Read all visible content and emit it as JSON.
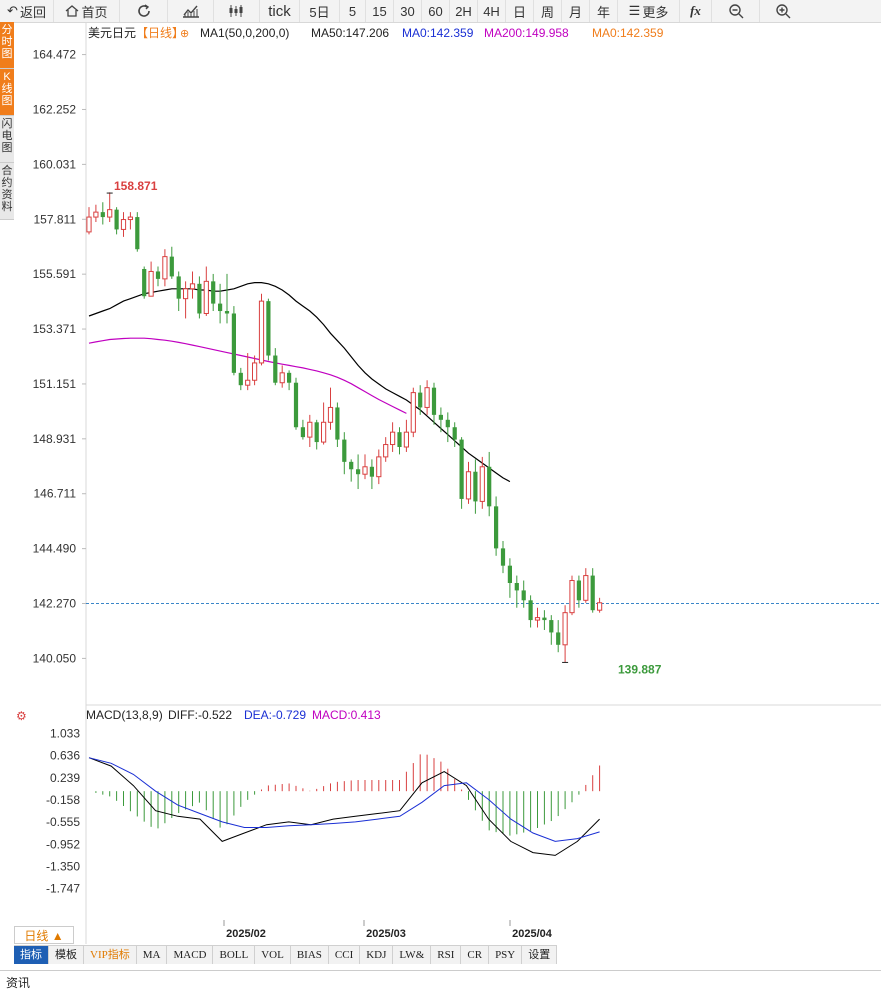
{
  "toolbar": {
    "back": "返回",
    "home": "首页",
    "tick": "tick",
    "periods": [
      "5日",
      "5",
      "15",
      "30",
      "60",
      "2H",
      "4H",
      "日",
      "周",
      "月",
      "年"
    ],
    "more": "更多"
  },
  "side_tabs": [
    "分时图",
    "K线图",
    "闪电图",
    "合约资料"
  ],
  "legend": {
    "symbol": "美元日元",
    "period_tag": "【日线】",
    "ma_set": "MA1(50,0,200,0)",
    "ma50": "MA50:147.206",
    "ma100": "MA0:142.359",
    "ma200": "MA200:149.958",
    "ma0": "MA0:142.359"
  },
  "macd_legend": {
    "name": "MACD(13,8,9)",
    "diff": "DIFF:-0.522",
    "dea": "DEA:-0.729",
    "macd": "MACD:0.413"
  },
  "price_ticks": [
    "164.472",
    "162.252",
    "160.031",
    "157.811",
    "155.591",
    "153.371",
    "151.151",
    "148.931",
    "146.711",
    "144.490",
    "142.270",
    "140.050"
  ],
  "macd_ticks": [
    "1.033",
    "0.636",
    "0.239",
    "-0.158",
    "-0.555",
    "-0.952",
    "-1.350",
    "-1.747"
  ],
  "date_labels": [
    "2025/02",
    "2025/03",
    "2025/04"
  ],
  "high_label": "158.871",
  "low_label": "139.887",
  "period_button": "日线 ▲",
  "indicator_tabs": [
    "指标",
    "模板",
    "VIP指标",
    "MA",
    "MACD",
    "BOLL",
    "VOL",
    "BIAS",
    "CCI",
    "KDJ",
    "LW&",
    "RSI",
    "CR",
    "PSY",
    "设置"
  ],
  "info_label": "资讯",
  "colors": {
    "up": "#d94040",
    "down": "#3c9a3c",
    "ma50": "#000000",
    "ma200": "#c000c0",
    "accent": "#f07d1b"
  },
  "chart_data": {
    "type": "candlestick",
    "ylim": [
      139.5,
      164.9
    ],
    "current_price": 142.27,
    "candles": [
      [
        157.3,
        157.9,
        157.2,
        158.3
      ],
      [
        157.9,
        158.1,
        157.7,
        158.4
      ],
      [
        158.1,
        157.9,
        157.6,
        158.5
      ],
      [
        157.9,
        158.2,
        157.7,
        158.9
      ],
      [
        158.2,
        157.4,
        157.2,
        158.3
      ],
      [
        157.4,
        157.8,
        157.1,
        158.1
      ],
      [
        157.8,
        157.9,
        157.4,
        158.1
      ],
      [
        157.9,
        156.6,
        156.5,
        158.1
      ],
      [
        155.8,
        154.7,
        154.6,
        155.9
      ],
      [
        154.7,
        155.7,
        154.7,
        156.1
      ],
      [
        155.7,
        155.4,
        155.1,
        155.9
      ],
      [
        155.4,
        156.3,
        155.1,
        156.6
      ],
      [
        156.3,
        155.5,
        155.4,
        156.7
      ],
      [
        155.5,
        154.6,
        154.1,
        155.7
      ],
      [
        154.6,
        155.0,
        153.8,
        155.3
      ],
      [
        155.0,
        155.2,
        154.6,
        155.7
      ],
      [
        155.2,
        154.0,
        153.8,
        155.5
      ],
      [
        154.0,
        155.3,
        153.9,
        155.9
      ],
      [
        155.3,
        154.4,
        154.1,
        155.6
      ],
      [
        154.4,
        154.1,
        153.6,
        155.2
      ],
      [
        154.1,
        154.0,
        153.6,
        155.6
      ],
      [
        154.0,
        151.6,
        151.5,
        154.3
      ],
      [
        151.6,
        151.1,
        150.9,
        151.8
      ],
      [
        151.1,
        151.3,
        150.9,
        152.4
      ],
      [
        151.3,
        152.0,
        151.1,
        152.3
      ],
      [
        152.0,
        154.5,
        151.9,
        154.8
      ],
      [
        154.5,
        152.3,
        152.1,
        154.6
      ],
      [
        152.3,
        151.2,
        151.1,
        152.6
      ],
      [
        151.2,
        151.6,
        151.0,
        151.9
      ],
      [
        151.6,
        151.2,
        150.9,
        151.7
      ],
      [
        151.2,
        149.4,
        149.3,
        151.4
      ],
      [
        149.4,
        149.0,
        148.9,
        149.7
      ],
      [
        149.0,
        149.6,
        148.6,
        149.9
      ],
      [
        149.6,
        148.8,
        148.5,
        149.7
      ],
      [
        148.8,
        149.6,
        148.7,
        150.4
      ],
      [
        149.6,
        150.2,
        149.3,
        151.0
      ],
      [
        150.2,
        148.9,
        148.6,
        150.4
      ],
      [
        148.9,
        148.0,
        147.5,
        149.2
      ],
      [
        148.0,
        147.7,
        147.2,
        148.1
      ],
      [
        147.7,
        147.5,
        146.9,
        148.3
      ],
      [
        147.5,
        147.8,
        147.3,
        148.3
      ],
      [
        147.8,
        147.4,
        146.9,
        148.1
      ],
      [
        147.4,
        148.2,
        147.1,
        148.5
      ],
      [
        148.2,
        148.7,
        148.0,
        149.0
      ],
      [
        148.7,
        149.2,
        148.4,
        149.6
      ],
      [
        149.2,
        148.6,
        148.3,
        149.4
      ],
      [
        148.6,
        149.2,
        148.4,
        149.7
      ],
      [
        149.2,
        150.8,
        149.0,
        151.0
      ],
      [
        150.8,
        150.2,
        149.9,
        151.1
      ],
      [
        150.2,
        151.0,
        149.9,
        151.3
      ],
      [
        151.0,
        149.9,
        149.5,
        151.2
      ],
      [
        149.9,
        149.7,
        149.2,
        150.2
      ],
      [
        149.7,
        149.4,
        148.8,
        150.0
      ],
      [
        149.4,
        148.9,
        148.6,
        149.6
      ],
      [
        148.9,
        146.5,
        146.1,
        149.0
      ],
      [
        146.5,
        147.6,
        146.3,
        148.0
      ],
      [
        147.6,
        146.4,
        145.9,
        148.1
      ],
      [
        146.4,
        147.8,
        146.1,
        148.2
      ],
      [
        147.8,
        146.2,
        145.8,
        148.4
      ],
      [
        146.2,
        144.5,
        144.2,
        146.6
      ],
      [
        144.5,
        143.8,
        143.5,
        144.8
      ],
      [
        143.8,
        143.1,
        142.5,
        144.1
      ],
      [
        143.1,
        142.8,
        142.1,
        143.4
      ],
      [
        142.8,
        142.4,
        142.1,
        143.2
      ],
      [
        142.4,
        141.6,
        141.3,
        142.6
      ],
      [
        141.6,
        141.7,
        141.3,
        142.1
      ],
      [
        141.7,
        141.6,
        141.2,
        142.0
      ],
      [
        141.6,
        141.1,
        140.6,
        141.8
      ],
      [
        141.1,
        140.6,
        140.3,
        141.6
      ],
      [
        140.6,
        141.9,
        139.9,
        142.2
      ],
      [
        141.9,
        143.2,
        141.8,
        143.4
      ],
      [
        143.2,
        142.4,
        142.1,
        143.4
      ],
      [
        142.4,
        143.4,
        142.3,
        143.7
      ],
      [
        143.4,
        142.0,
        141.9,
        143.7
      ],
      [
        142.0,
        142.3,
        141.9,
        142.5
      ]
    ],
    "ma50": [
      153.9,
      154.0,
      154.1,
      154.2,
      154.35,
      154.5,
      154.6,
      154.7,
      154.8,
      154.85,
      154.9,
      154.95,
      155.0,
      155.0,
      155.0,
      155.0,
      154.95,
      154.95,
      154.9,
      154.9,
      154.95,
      155.0,
      155.1,
      155.2,
      155.25,
      155.25,
      155.2,
      155.1,
      154.95,
      154.75,
      154.5,
      154.3,
      154.1,
      153.85,
      153.55,
      153.2,
      152.9,
      152.6,
      152.25,
      151.9,
      151.6,
      151.35,
      151.15,
      150.95,
      150.8,
      150.65,
      150.5,
      150.3,
      150.1,
      149.85,
      149.6,
      149.35,
      149.1,
      148.85,
      148.6,
      148.35,
      148.15,
      147.95,
      147.75,
      147.55,
      147.35,
      147.2
    ],
    "ma200": [
      152.8,
      152.85,
      152.9,
      152.95,
      152.97,
      152.99,
      153.0,
      153.0,
      153.0,
      152.98,
      152.95,
      152.92,
      152.88,
      152.83,
      152.78,
      152.72,
      152.66,
      152.6,
      152.54,
      152.48,
      152.42,
      152.36,
      152.3,
      152.24,
      152.18,
      152.12,
      152.06,
      152.0,
      151.95,
      151.9,
      151.85,
      151.8,
      151.74,
      151.68,
      151.6,
      151.52,
      151.42,
      151.3,
      151.16,
      151.0,
      150.84,
      150.68,
      150.52,
      150.38,
      150.24,
      150.1,
      149.96
    ],
    "macd_diff": [
      0.6,
      0.45,
      0.1,
      -0.35,
      -0.45,
      -0.5,
      -0.9,
      -0.75,
      -0.6,
      -0.55,
      -0.6,
      -0.5,
      -0.45,
      -0.4,
      -0.35,
      0.15,
      0.35,
      0.1,
      -0.5,
      -0.9,
      -1.1,
      -1.15,
      -0.9,
      -0.5
    ],
    "macd_dea": [
      0.6,
      0.5,
      0.3,
      0.0,
      -0.25,
      -0.4,
      -0.55,
      -0.65,
      -0.65,
      -0.62,
      -0.6,
      -0.58,
      -0.55,
      -0.5,
      -0.45,
      -0.2,
      0.1,
      0.15,
      -0.15,
      -0.5,
      -0.75,
      -0.9,
      -0.85,
      -0.73
    ]
  }
}
